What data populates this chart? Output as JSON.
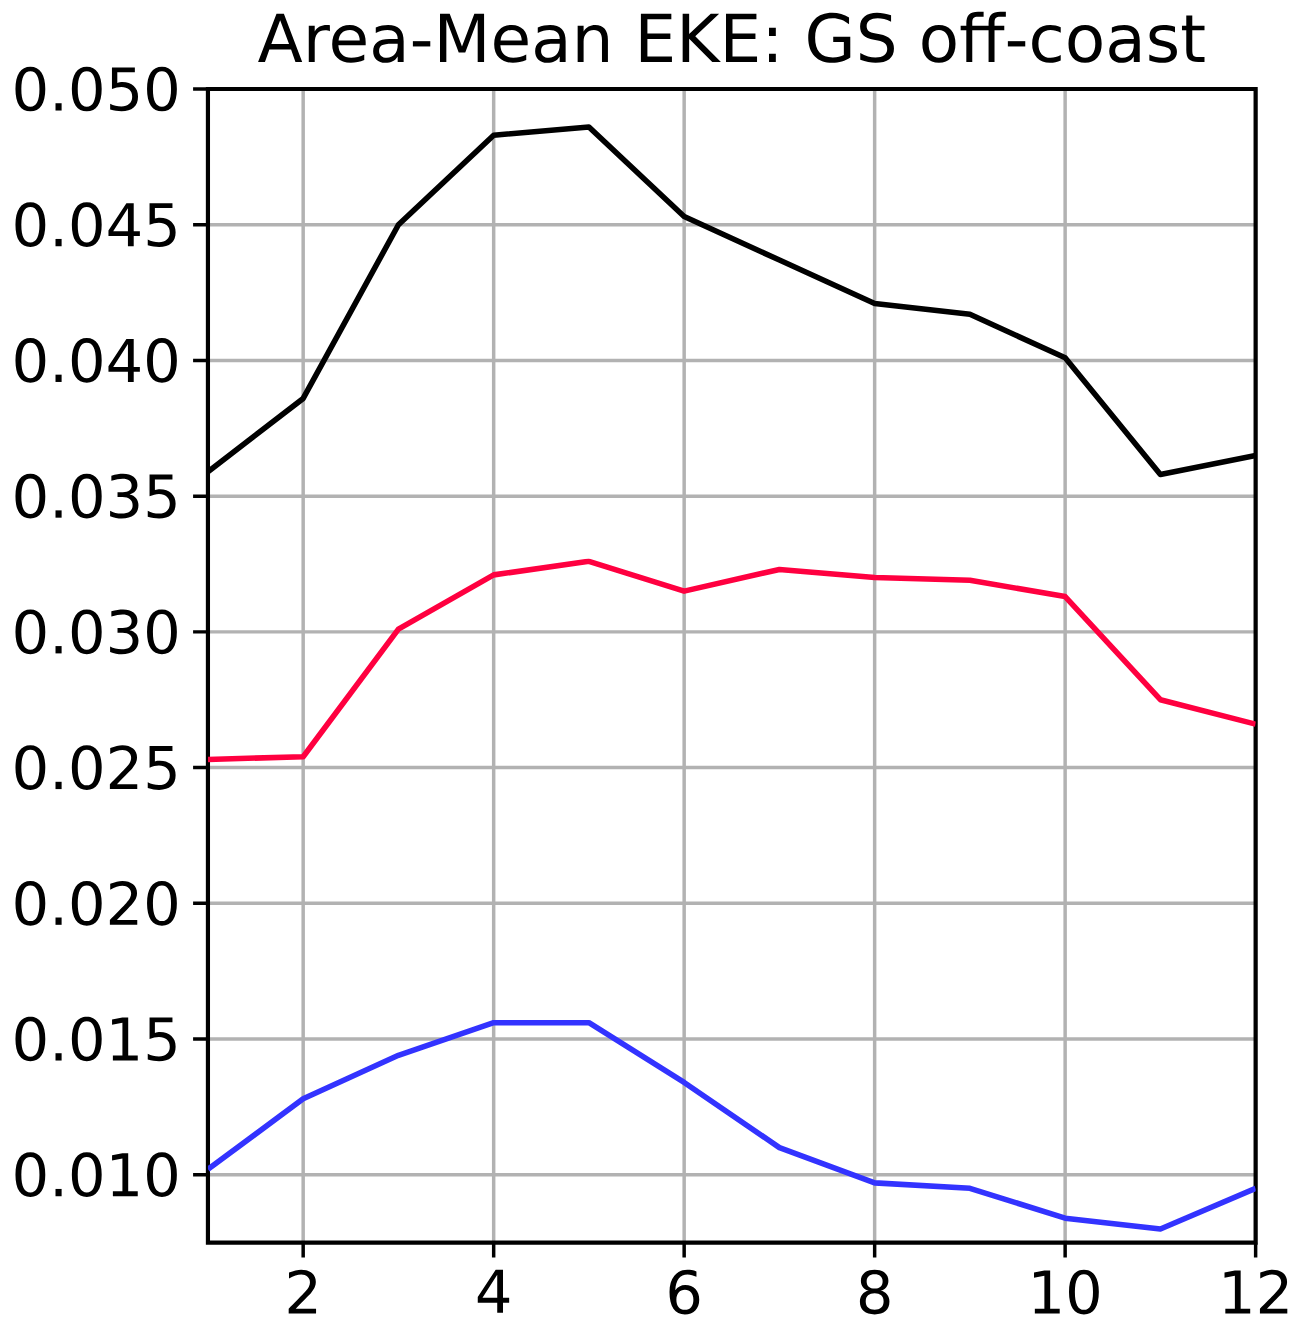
{
  "chart_data": {
    "type": "line",
    "title": "Area-Mean EKE: GS off-coast",
    "x": [
      1,
      2,
      3,
      4,
      5,
      6,
      7,
      8,
      9,
      10,
      11,
      12
    ],
    "series": [
      {
        "color": "#000000",
        "values": [
          0.0359,
          0.0386,
          0.045,
          0.0483,
          0.0486,
          0.0453,
          0.0437,
          0.0421,
          0.0417,
          0.0401,
          0.0358,
          0.0365
        ]
      },
      {
        "color": "#ff0040",
        "values": [
          0.0253,
          0.0254,
          0.0301,
          0.0321,
          0.0326,
          0.0315,
          0.0323,
          0.032,
          0.0319,
          0.0313,
          0.0275,
          0.0266
        ]
      },
      {
        "color": "#3333ff",
        "values": [
          0.0102,
          0.0128,
          0.0144,
          0.0156,
          0.0156,
          0.0134,
          0.011,
          0.0097,
          0.0095,
          0.0084,
          0.008,
          0.0095
        ]
      }
    ],
    "xlim": [
      1,
      12
    ],
    "xticks": [
      2,
      4,
      6,
      8,
      10,
      12
    ],
    "ylim": [
      0.0075,
      0.05
    ],
    "yticks": [
      {
        "value": 0.01,
        "label": "0.010"
      },
      {
        "value": 0.015,
        "label": "0.015"
      },
      {
        "value": 0.02,
        "label": "0.020"
      },
      {
        "value": 0.025,
        "label": "0.025"
      },
      {
        "value": 0.03,
        "label": "0.030"
      },
      {
        "value": 0.035,
        "label": "0.035"
      },
      {
        "value": 0.04,
        "label": "0.040"
      },
      {
        "value": 0.045,
        "label": "0.045"
      },
      {
        "value": 0.05,
        "label": "0.050"
      }
    ],
    "grid": true,
    "line_style": "solid"
  }
}
